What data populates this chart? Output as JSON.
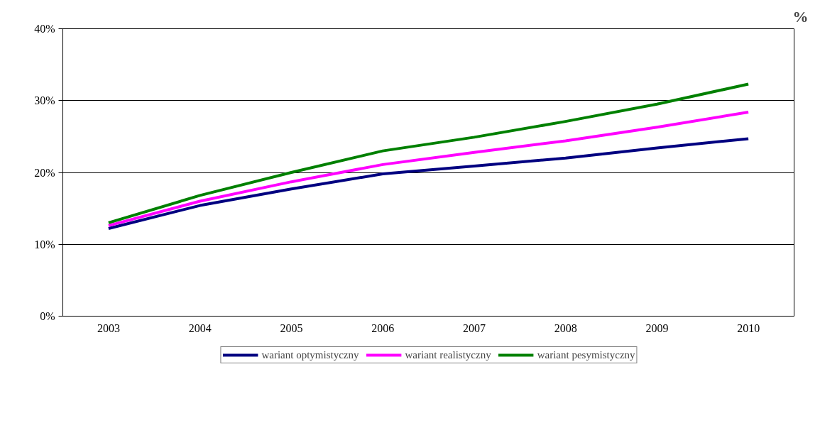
{
  "chart_data": {
    "type": "line",
    "categories": [
      "2003",
      "2004",
      "2005",
      "2006",
      "2007",
      "2008",
      "2009",
      "2010"
    ],
    "series": [
      {
        "name": "wariant optymistyczny",
        "color": "#000080",
        "values": [
          12.2,
          15.4,
          17.7,
          19.8,
          20.9,
          22.0,
          23.4,
          24.7
        ]
      },
      {
        "name": "wariant realistyczny",
        "color": "#ff00ff",
        "values": [
          12.6,
          16.0,
          18.7,
          21.1,
          22.8,
          24.4,
          26.3,
          28.4
        ]
      },
      {
        "name": "wariant pesymistyczny",
        "color": "#008000",
        "values": [
          13.0,
          16.8,
          20.0,
          23.0,
          24.9,
          27.1,
          29.5,
          32.3
        ]
      }
    ],
    "ylim": [
      0,
      40
    ],
    "yticks": [
      {
        "value": 0,
        "label": "0%"
      },
      {
        "value": 10,
        "label": "10%"
      },
      {
        "value": 20,
        "label": "20%"
      },
      {
        "value": 30,
        "label": "30%"
      },
      {
        "value": 40,
        "label": "40%"
      }
    ],
    "grid": "y",
    "legend": "bottom",
    "marker": "none",
    "line_style": "solid",
    "annotations": [
      "%"
    ]
  }
}
